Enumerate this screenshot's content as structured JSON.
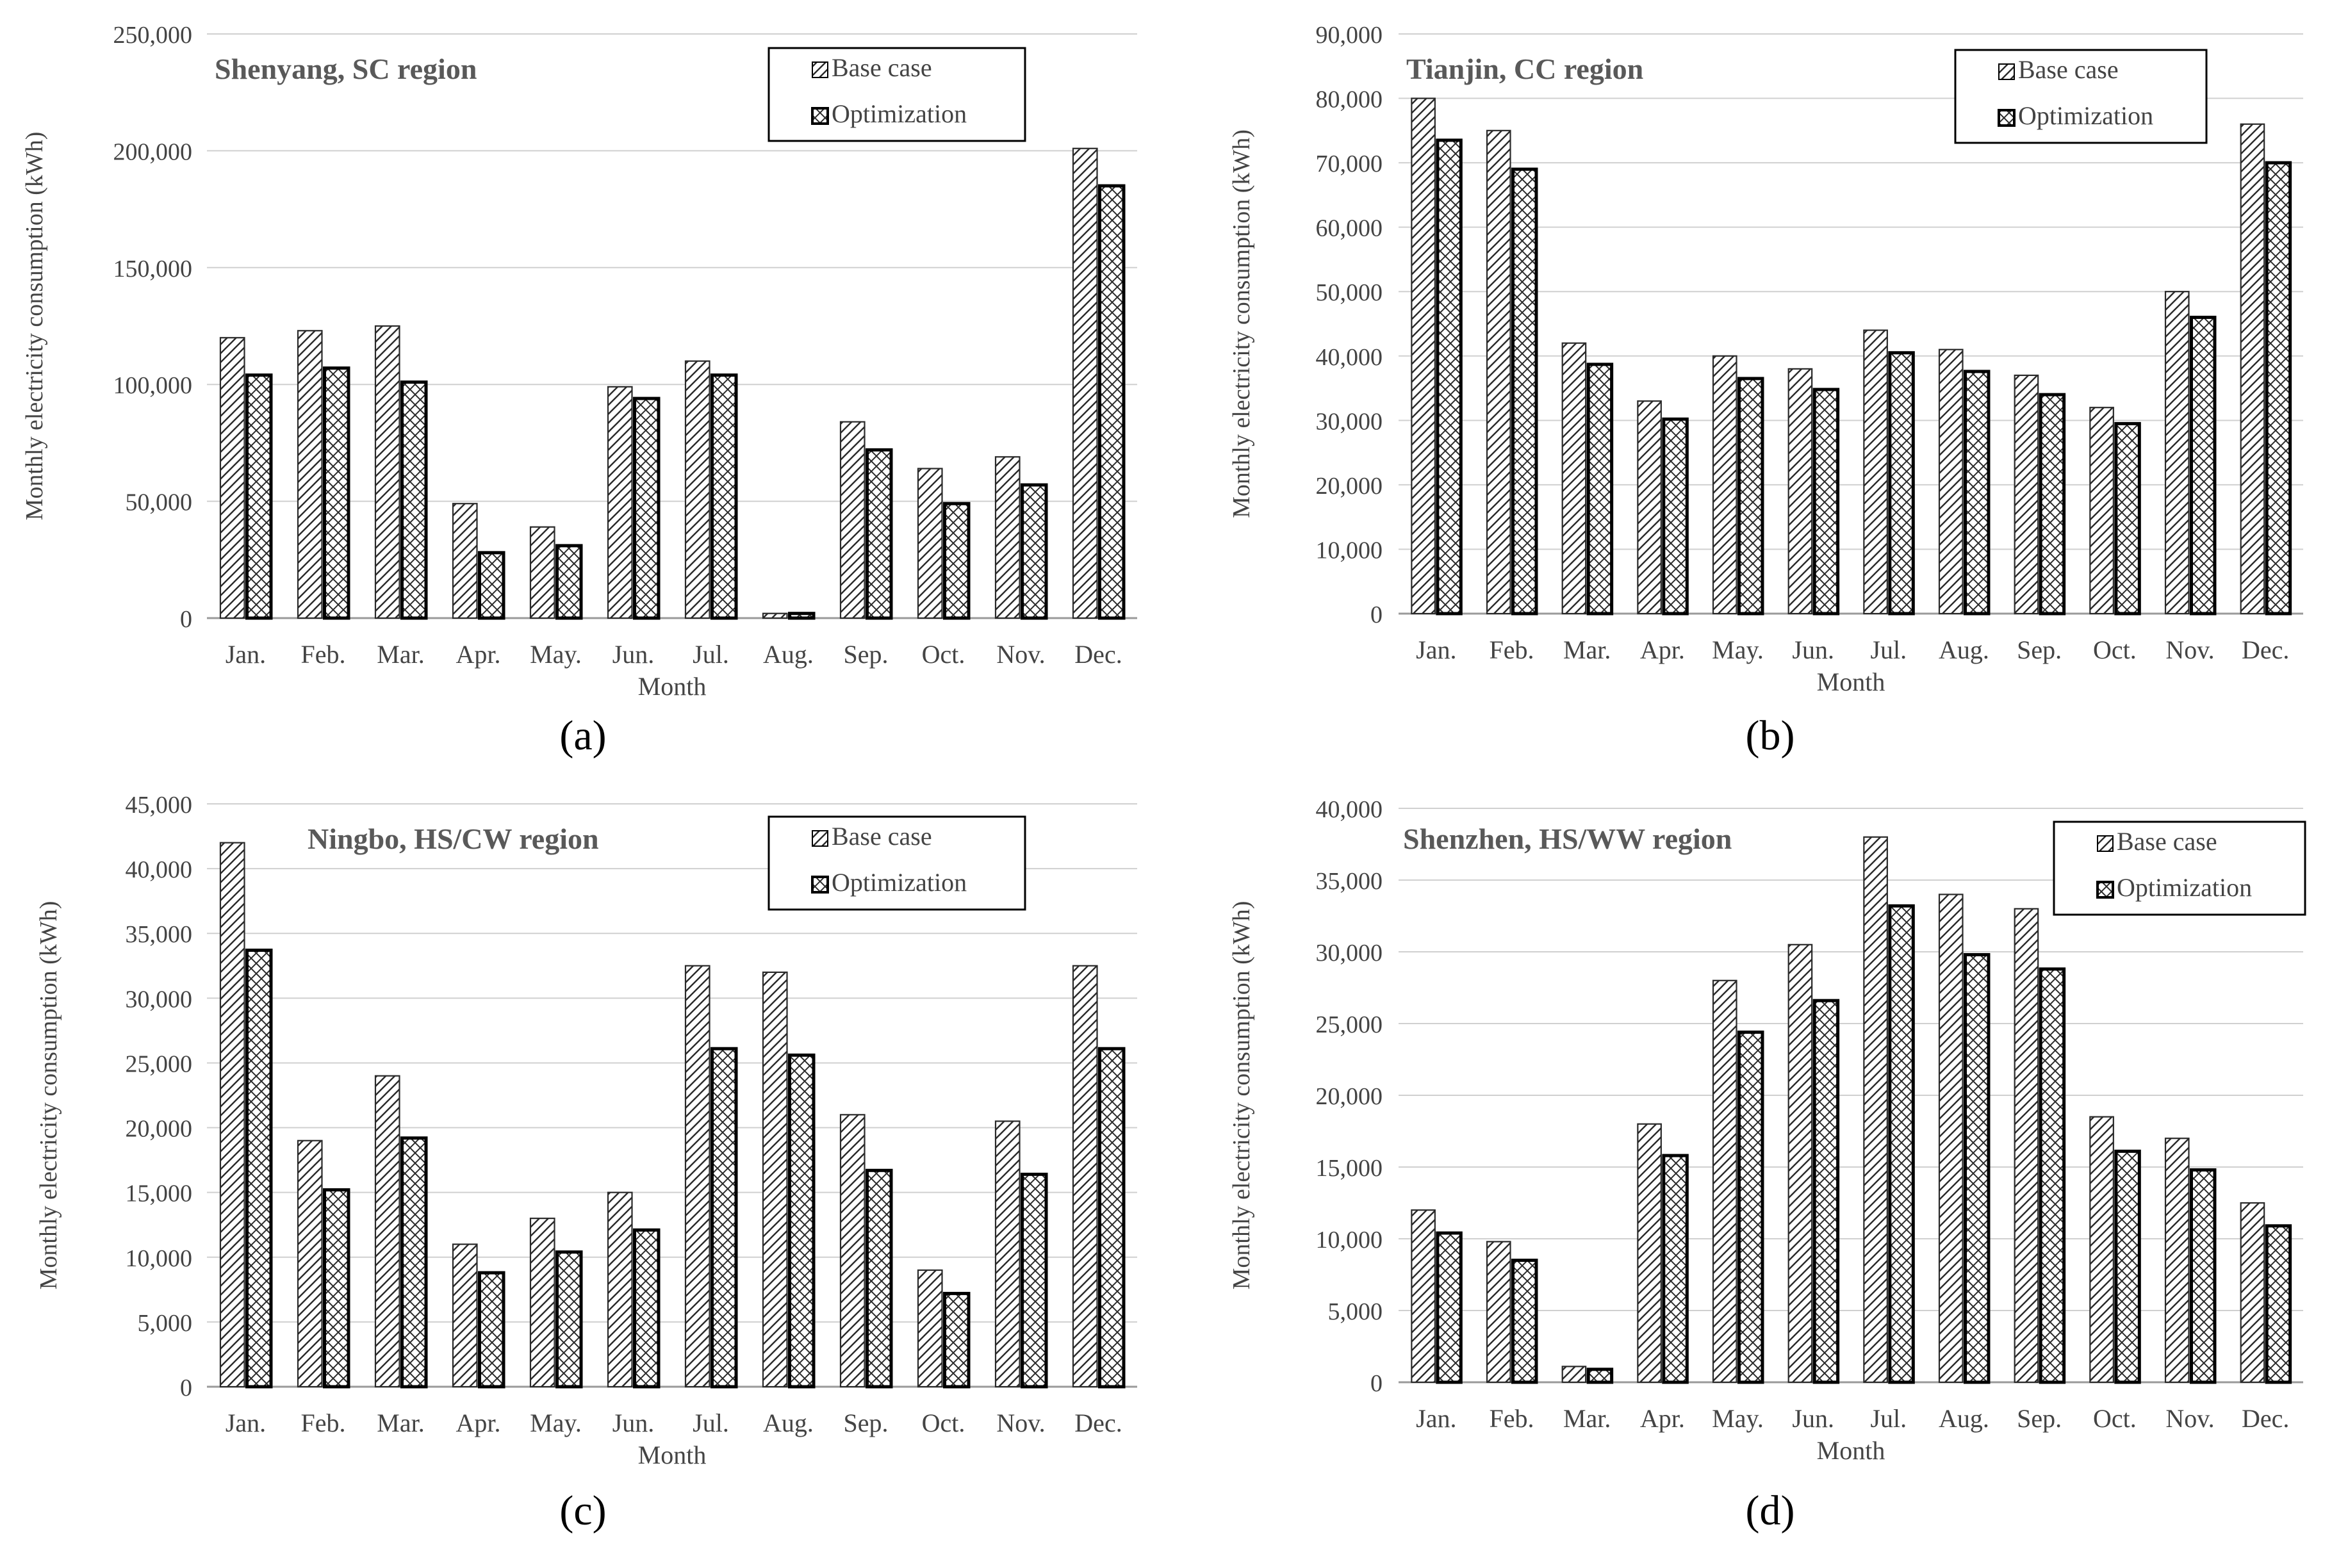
{
  "figure": {
    "x_axis_title": "Month",
    "y_axis_title": "Monthly electricity consumption (kWh)",
    "legend_base": "Base case",
    "legend_opt": "Optimization"
  },
  "chart_data": [
    {
      "type": "bar",
      "panel_label": "(a)",
      "title": "Shenyang, SC region",
      "categories": [
        "Jan.",
        "Feb.",
        "Mar.",
        "Apr.",
        "May.",
        "Jun.",
        "Jul.",
        "Aug.",
        "Sep.",
        "Oct.",
        "Nov.",
        "Dec."
      ],
      "series": [
        {
          "name": "Base case",
          "values": [
            120000,
            123000,
            125000,
            49000,
            39000,
            99000,
            110000,
            2000,
            84000,
            64000,
            69000,
            201000
          ]
        },
        {
          "name": "Optimization",
          "values": [
            104000,
            107000,
            101000,
            28000,
            31000,
            94000,
            104000,
            2000,
            72000,
            49000,
            57000,
            185000
          ]
        }
      ],
      "xlabel": "Month",
      "ylabel": "Monthly electricity consumption (kWh)",
      "ylim": [
        0,
        250000
      ],
      "yticks": [
        0,
        50000,
        100000,
        150000,
        200000,
        250000
      ],
      "ytick_labels": [
        "0",
        "50,000",
        "100,000",
        "150,000",
        "200,000",
        "250,000"
      ],
      "grid": true,
      "legend_position": "top-right"
    },
    {
      "type": "bar",
      "panel_label": "(b)",
      "title": "Tianjin, CC region",
      "categories": [
        "Jan.",
        "Feb.",
        "Mar.",
        "Apr.",
        "May.",
        "Jun.",
        "Jul.",
        "Aug.",
        "Sep.",
        "Oct.",
        "Nov.",
        "Dec."
      ],
      "series": [
        {
          "name": "Base case",
          "values": [
            80000,
            75000,
            42000,
            33000,
            40000,
            38000,
            44000,
            41000,
            37000,
            32000,
            50000,
            76000
          ]
        },
        {
          "name": "Optimization",
          "values": [
            73500,
            69000,
            38700,
            30200,
            36500,
            34800,
            40500,
            37600,
            34000,
            29500,
            46000,
            70000
          ]
        }
      ],
      "xlabel": "Month",
      "ylabel": "Monthly electricity consumption (kWh)",
      "ylim": [
        0,
        90000
      ],
      "yticks": [
        0,
        10000,
        20000,
        30000,
        40000,
        50000,
        60000,
        70000,
        80000,
        90000
      ],
      "ytick_labels": [
        "0",
        "10,000",
        "20,000",
        "30,000",
        "40,000",
        "50,000",
        "60,000",
        "70,000",
        "80,000",
        "90,000"
      ],
      "grid": true,
      "legend_position": "top-right"
    },
    {
      "type": "bar",
      "panel_label": "(c)",
      "title": "Ningbo, HS/CW region",
      "categories": [
        "Jan.",
        "Feb.",
        "Mar.",
        "Apr.",
        "May.",
        "Jun.",
        "Jul.",
        "Aug.",
        "Sep.",
        "Oct.",
        "Nov.",
        "Dec."
      ],
      "series": [
        {
          "name": "Base case",
          "values": [
            42000,
            19000,
            24000,
            11000,
            13000,
            15000,
            32500,
            32000,
            21000,
            9000,
            20500,
            32500
          ]
        },
        {
          "name": "Optimization",
          "values": [
            33700,
            15200,
            19200,
            8800,
            10400,
            12100,
            26100,
            25600,
            16700,
            7200,
            16400,
            26100
          ]
        }
      ],
      "xlabel": "Month",
      "ylabel": "Monthly electricity consumption (kWh)",
      "ylim": [
        0,
        45000
      ],
      "yticks": [
        0,
        5000,
        10000,
        15000,
        20000,
        25000,
        30000,
        35000,
        40000,
        45000
      ],
      "ytick_labels": [
        "0",
        "5,000",
        "10,000",
        "15,000",
        "20,000",
        "25,000",
        "30,000",
        "35,000",
        "40,000",
        "45,000"
      ],
      "grid": true,
      "legend_position": "top-right"
    },
    {
      "type": "bar",
      "panel_label": "(d)",
      "title": "Shenzhen, HS/WW region",
      "categories": [
        "Jan.",
        "Feb.",
        "Mar.",
        "Apr.",
        "May.",
        "Jun.",
        "Jul.",
        "Aug.",
        "Sep.",
        "Oct.",
        "Nov.",
        "Dec."
      ],
      "series": [
        {
          "name": "Base case",
          "values": [
            12000,
            9800,
            1100,
            18000,
            28000,
            30500,
            38000,
            34000,
            33000,
            18500,
            17000,
            12500
          ]
        },
        {
          "name": "Optimization",
          "values": [
            10400,
            8500,
            900,
            15800,
            24400,
            26600,
            33200,
            29800,
            28800,
            16100,
            14800,
            10900
          ]
        }
      ],
      "xlabel": "Month",
      "ylabel": "Monthly electricity consumption (kWh)",
      "ylim": [
        0,
        40000
      ],
      "yticks": [
        0,
        5000,
        10000,
        15000,
        20000,
        25000,
        30000,
        35000,
        40000
      ],
      "ytick_labels": [
        "0",
        "5,000",
        "10,000",
        "15,000",
        "20,000",
        "25,000",
        "30,000",
        "35,000",
        "40,000"
      ],
      "grid": true,
      "legend_position": "top-right"
    }
  ]
}
